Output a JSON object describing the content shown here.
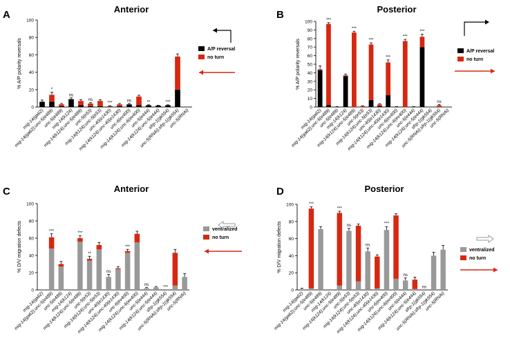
{
  "colors": {
    "black": "#000000",
    "red": "#d62811",
    "gray": "#999999",
    "axis": "#222222"
  },
  "chart_data": [
    {
      "panel": "A",
      "title": "Anterior",
      "type": "bar",
      "stacked": true,
      "ylabel": "% A/P polarity reversals",
      "ylim": [
        0,
        100
      ],
      "yticks": [
        0,
        20,
        40,
        60,
        80,
        100
      ],
      "categories": [
        "mig-14(ga62)",
        "mig-14(ga62);unc-5(e489)",
        "unc-5(e489)",
        "mig-14(k124)",
        "mig-14(k124);unc-5(e489)",
        "unc-5(e53)",
        "mig-14(k124);unc-5(e53)",
        "unc-40(e1430)",
        "mig-14(k124);unc-40(e1430)",
        "unc-6(ev400)",
        "mig-14(k124);unc-6(ev400)",
        "unc-5(e444)",
        "mig-14(k124);unc-5(e444)",
        "sfrp-1(gk554)",
        "unc-5(RNAi);sfrp-1(gk554)",
        "unc-5(RNAi)"
      ],
      "series": [
        {
          "name": "A/P reversal",
          "color": "#000000",
          "values": [
            6,
            6,
            1,
            9,
            2,
            1,
            1,
            0.5,
            1,
            3,
            2,
            2,
            1.5,
            2,
            20,
            0
          ]
        },
        {
          "name": "no turn",
          "color": "#d62811",
          "values": [
            0,
            8,
            2,
            0,
            5,
            3,
            6,
            0.5,
            2,
            0,
            10,
            0,
            0,
            0,
            38,
            0
          ]
        }
      ],
      "errors": [
        2,
        3,
        1,
        1.5,
        1.5,
        1,
        1.5,
        0.5,
        1,
        1,
        1.5,
        0.5,
        0.5,
        0.5,
        3,
        0
      ],
      "significance": [
        "",
        "*",
        "",
        "ns",
        "",
        "ns",
        "",
        "***",
        "",
        "ns",
        "",
        "**",
        "",
        "***",
        "",
        ""
      ],
      "legend": {
        "position": "right",
        "entries": [
          "A/P reversal",
          "no turn"
        ],
        "arrow_direction": "left"
      }
    },
    {
      "panel": "B",
      "title": "Posterior",
      "type": "bar",
      "stacked": true,
      "ylabel": "% A/P polarity reversals",
      "ylim": [
        0,
        100
      ],
      "yticks": [
        0,
        10,
        20,
        30,
        40,
        50,
        60,
        70,
        80,
        90,
        100
      ],
      "categories": [
        "mig-14(ga62)",
        "mig-14(ga62);unc-5(e489)",
        "unc-5(e489)",
        "mig-14(k124)",
        "mig-14(k124);unc-5(e489)",
        "unc-5(e53)",
        "mig-14(k124);unc-5(e53)",
        "unc-40(e1430)",
        "mig-14(k124);unc-40(e1430)",
        "unc-6(ev400)",
        "mig-14(k124);unc-6(ev400)",
        "unc-5(e444)",
        "mig-14(k124);unc-5(e444)",
        "sfrp-1(gk554)",
        "unc-5(RNAi);sfrp-1(gk554)",
        "unc-5(RNAi)"
      ],
      "series": [
        {
          "name": "A/P reversal",
          "color": "#000000",
          "values": [
            43,
            2,
            0,
            36,
            0,
            0,
            8,
            1,
            14,
            0,
            0,
            0,
            70,
            0,
            0,
            0
          ]
        },
        {
          "name": "no turn",
          "color": "#d62811",
          "values": [
            1,
            95,
            0,
            1,
            87,
            1,
            65,
            2,
            38,
            0,
            77,
            0,
            12,
            0,
            2,
            0
          ]
        }
      ],
      "errors": [
        4,
        1.5,
        0.5,
        1.5,
        1.5,
        0.5,
        2,
        1,
        3,
        0.5,
        2,
        0.5,
        3,
        0,
        1,
        0
      ],
      "significance": [
        "",
        "***",
        "",
        "",
        "***",
        "",
        "***",
        "",
        "***",
        "",
        "***",
        "",
        "***",
        "",
        "ns",
        ""
      ],
      "legend": {
        "position": "right",
        "entries": [
          "A/P reversal",
          "no turn"
        ],
        "arrow_direction": "right"
      }
    },
    {
      "panel": "C",
      "title": "Anterior",
      "type": "bar",
      "stacked": true,
      "ylabel": "% D/V migration defects",
      "ylim": [
        0,
        100
      ],
      "yticks": [
        0,
        20,
        40,
        60,
        80,
        100
      ],
      "categories": [
        "mig-14(ga62)",
        "mig-14(ga62);unc-5(e489)",
        "unc-5(e489)",
        "mig-14(k124)",
        "mig-14(k124);unc-5(e489)",
        "unc-5(e53)",
        "mig-14(k124);unc-5(e53)",
        "unc-40(e1430)",
        "mig-14(k124);unc-40(e1430)",
        "unc-6(ev400)",
        "mig-14(k124);unc-6(ev400)",
        "unc-5(e444)",
        "mig-14(k124);unc-5(e444)",
        "sfrp-1(gk554)",
        "unc-5(RNAi);sfrp-1(gk554)",
        "unc-5(RNAi)"
      ],
      "series": [
        {
          "name": "ventralized",
          "color": "#999999",
          "values": [
            0,
            48,
            27,
            0,
            56,
            34,
            47,
            15,
            24,
            43,
            55,
            2,
            3,
            0,
            5,
            15
          ]
        },
        {
          "name": "no turn",
          "color": "#d62811",
          "values": [
            0,
            13,
            3,
            0,
            4,
            2,
            5,
            0,
            1,
            2,
            10,
            0,
            0,
            0,
            38,
            0
          ]
        }
      ],
      "errors": [
        0,
        4,
        3,
        0,
        3,
        3,
        3,
        3,
        2,
        2,
        3,
        1,
        1,
        0,
        4,
        4
      ],
      "significance": [
        "",
        "***",
        "",
        "",
        "***",
        "**",
        "",
        "ns",
        "",
        "***",
        "",
        "ns",
        "",
        "***",
        "",
        ""
      ],
      "legend": {
        "position": "right",
        "entries": [
          "ventralized",
          "no turn"
        ],
        "arrow_direction": "left"
      }
    },
    {
      "panel": "D",
      "title": "Posterior",
      "type": "bar",
      "stacked": true,
      "ylabel": "% D/V migration defects",
      "ylim": [
        0,
        100
      ],
      "yticks": [
        0,
        20,
        40,
        60,
        80,
        100
      ],
      "categories": [
        "mig-14(ga62)",
        "mig-14(ga62);unc-5(e489)",
        "unc-5(e489)",
        "mig-14(k124)",
        "mig-14(k124);unc-5(e489)",
        "unc-5(e53)",
        "mig-14(k124);unc-5(e53)",
        "unc-40(e1430)",
        "mig-14(k124);unc-40(e1430)",
        "unc-6(ev400)",
        "mig-14(k124);unc-6(ev400)",
        "unc-5(e444)",
        "mig-14(k124);unc-5(e444)",
        "sfrp-1(gk554)",
        "unc-5(RNAi);sfrp-1(gk554)",
        "unc-5(RNAi)"
      ],
      "series": [
        {
          "name": "ventralized",
          "color": "#999999",
          "values": [
            1,
            2,
            71,
            0,
            5,
            69,
            10,
            45,
            2,
            70,
            13,
            11,
            1,
            0,
            40,
            47
          ]
        },
        {
          "name": "no turn",
          "color": "#d62811",
          "values": [
            0,
            93,
            0,
            0,
            85,
            0,
            65,
            0,
            37,
            0,
            74,
            0,
            11,
            0,
            0,
            0
          ]
        }
      ],
      "errors": [
        1,
        2,
        3,
        0,
        2,
        3,
        2,
        4,
        2,
        4,
        2,
        3,
        3,
        0,
        4,
        5
      ],
      "significance": [
        "",
        "***",
        "",
        "",
        "***",
        "ns",
        "",
        "ns",
        "",
        "***",
        "",
        "ns",
        "",
        "ns",
        "",
        ""
      ],
      "legend": {
        "position": "right",
        "entries": [
          "ventralized",
          "no turn"
        ],
        "arrow_direction": "right"
      }
    }
  ]
}
